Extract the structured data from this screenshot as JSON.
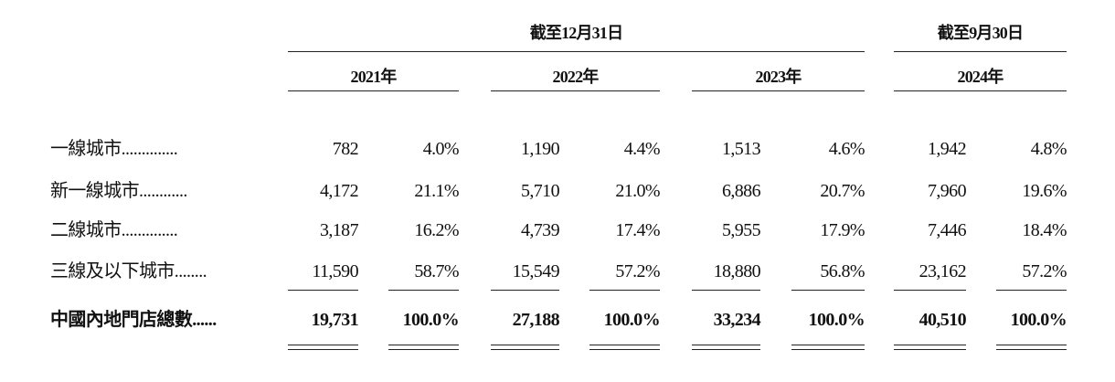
{
  "header": {
    "groups": [
      {
        "label": "截至12月31日",
        "years": [
          "2021年",
          "2022年",
          "2023年"
        ]
      },
      {
        "label": "截至9月30日",
        "years": [
          "2024年"
        ]
      }
    ]
  },
  "table": {
    "rows": [
      {
        "label": "一線城市..............",
        "cells": [
          "782",
          "4.0%",
          "1,190",
          "4.4%",
          "1,513",
          "4.6%",
          "1,942",
          "4.8%"
        ]
      },
      {
        "label": "新一線城市............",
        "cells": [
          "4,172",
          "21.1%",
          "5,710",
          "21.0%",
          "6,886",
          "20.7%",
          "7,960",
          "19.6%"
        ]
      },
      {
        "label": "二線城市..............",
        "cells": [
          "3,187",
          "16.2%",
          "4,739",
          "17.4%",
          "5,955",
          "17.9%",
          "7,446",
          "18.4%"
        ]
      },
      {
        "label": "三線及以下城市........",
        "cells": [
          "11,590",
          "58.7%",
          "15,549",
          "57.2%",
          "18,880",
          "56.8%",
          "23,162",
          "57.2%"
        ]
      },
      {
        "label": "中國內地門店總數......",
        "cells": [
          "19,731",
          "100.0%",
          "27,188",
          "100.0%",
          "33,234",
          "100.0%",
          "40,510",
          "100.0%"
        ]
      }
    ]
  }
}
